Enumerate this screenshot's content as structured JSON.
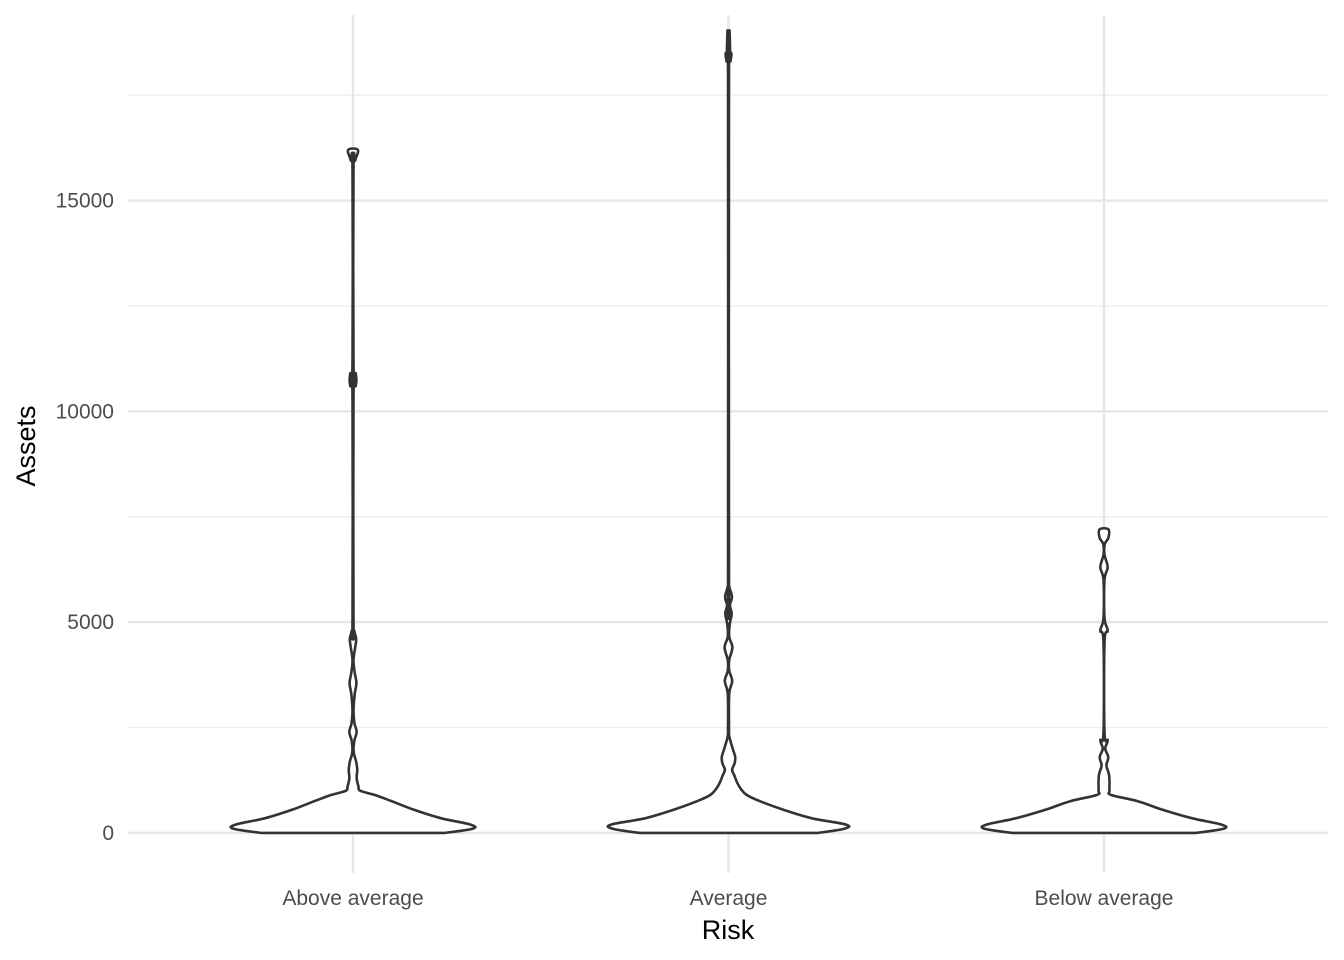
{
  "chart_data": {
    "type": "violin",
    "title": "",
    "xlabel": "Risk",
    "ylabel": "Assets",
    "categories": [
      "Above average",
      "Average",
      "Below average"
    ],
    "ylim": [
      -950,
      19400
    ],
    "y_ticks": [
      0,
      5000,
      10000,
      15000
    ],
    "y_tick_labels": [
      "0",
      "5000",
      "10000",
      "15000"
    ],
    "grid": true,
    "legend": "none",
    "colors": {
      "outline": "#333333",
      "fill": "#ffffff",
      "grid": "#e6e6e6",
      "text": "#4d4d4d"
    },
    "series": [
      {
        "category": "Above average",
        "min": 0,
        "max": 16200,
        "density": [
          [
            0,
            0.75
          ],
          [
            100,
            0.98
          ],
          [
            200,
            0.96
          ],
          [
            350,
            0.72
          ],
          [
            550,
            0.5
          ],
          [
            750,
            0.32
          ],
          [
            900,
            0.18
          ],
          [
            1000,
            0.06
          ],
          [
            1100,
            0.045
          ],
          [
            1300,
            0.03
          ],
          [
            1500,
            0.035
          ],
          [
            1700,
            0.025
          ],
          [
            1850,
            0.01
          ],
          [
            2000,
            0.004
          ],
          [
            2200,
            0.012
          ],
          [
            2400,
            0.03
          ],
          [
            2600,
            0.012
          ],
          [
            2900,
            0.004
          ],
          [
            3300,
            0.014
          ],
          [
            3550,
            0.028
          ],
          [
            3800,
            0.014
          ],
          [
            4100,
            0.004
          ],
          [
            4400,
            0.018
          ],
          [
            4600,
            0.026
          ],
          [
            4800,
            0.01
          ],
          [
            5100,
            0.004
          ],
          [
            10300,
            0.004
          ],
          [
            10600,
            0.022
          ],
          [
            10750,
            0.028
          ],
          [
            10900,
            0.022
          ],
          [
            11200,
            0.004
          ],
          [
            15700,
            0.004
          ],
          [
            15950,
            0.018
          ],
          [
            16200,
            0.04
          ]
        ]
      },
      {
        "category": "Average",
        "min": 0,
        "max": 18500,
        "density": [
          [
            0,
            0.73
          ],
          [
            100,
            0.95
          ],
          [
            200,
            0.96
          ],
          [
            350,
            0.68
          ],
          [
            550,
            0.45
          ],
          [
            750,
            0.26
          ],
          [
            900,
            0.15
          ],
          [
            1050,
            0.1
          ],
          [
            1200,
            0.07
          ],
          [
            1350,
            0.05
          ],
          [
            1500,
            0.03
          ],
          [
            1650,
            0.05
          ],
          [
            1800,
            0.055
          ],
          [
            1950,
            0.04
          ],
          [
            2100,
            0.024
          ],
          [
            2300,
            0.006
          ],
          [
            2500,
            0.004
          ],
          [
            3300,
            0.006
          ],
          [
            3600,
            0.03
          ],
          [
            3850,
            0.006
          ],
          [
            4100,
            0.006
          ],
          [
            4400,
            0.032
          ],
          [
            4650,
            0.006
          ],
          [
            4950,
            0.01
          ],
          [
            5200,
            0.026
          ],
          [
            5400,
            0.012
          ],
          [
            5600,
            0.028
          ],
          [
            5850,
            0.006
          ],
          [
            6100,
            0.004
          ],
          [
            18000,
            0.004
          ],
          [
            18300,
            0.016
          ],
          [
            18500,
            0.022
          ]
        ]
      },
      {
        "category": "Below average",
        "min": 0,
        "max": 7200,
        "density": [
          [
            0,
            0.75
          ],
          [
            100,
            0.98
          ],
          [
            200,
            0.96
          ],
          [
            350,
            0.72
          ],
          [
            550,
            0.48
          ],
          [
            750,
            0.28
          ],
          [
            900,
            0.06
          ],
          [
            1000,
            0.045
          ],
          [
            1200,
            0.045
          ],
          [
            1400,
            0.04
          ],
          [
            1600,
            0.02
          ],
          [
            1800,
            0.035
          ],
          [
            2000,
            0.01
          ],
          [
            2200,
            0.03
          ],
          [
            2400,
            0.004
          ],
          [
            4500,
            0.004
          ],
          [
            4800,
            0.03
          ],
          [
            5100,
            0.004
          ],
          [
            6000,
            0.004
          ],
          [
            6300,
            0.03
          ],
          [
            6600,
            0.004
          ],
          [
            6850,
            0.006
          ],
          [
            7000,
            0.036
          ],
          [
            7200,
            0.036
          ]
        ]
      }
    ]
  }
}
